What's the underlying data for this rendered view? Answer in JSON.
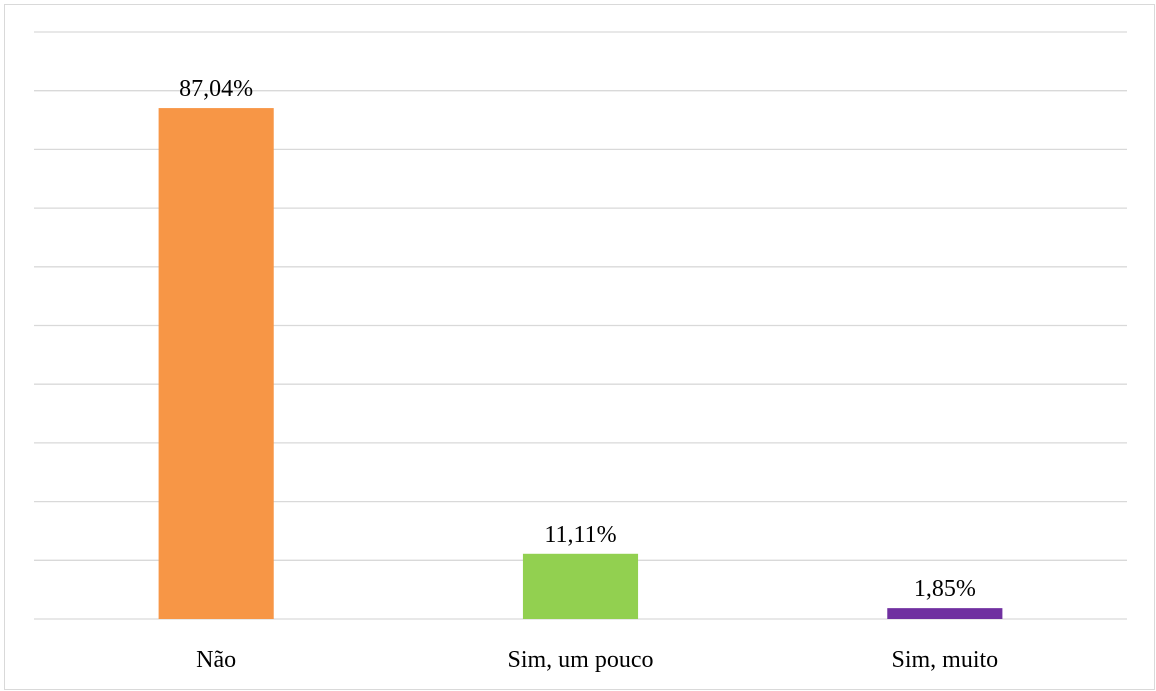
{
  "chart_data": {
    "type": "bar",
    "categories": [
      "Não",
      "Sim, um pouco",
      "Sim, muito"
    ],
    "values": [
      87.04,
      11.11,
      1.85
    ],
    "value_labels": [
      "87,04%",
      "11,11%",
      "1,85%"
    ],
    "colors": [
      "#f79646",
      "#92d050",
      "#7030a0"
    ],
    "ylim": [
      0,
      100
    ],
    "yticks": [
      0,
      10,
      20,
      30,
      40,
      50,
      60,
      70,
      80,
      90,
      100
    ],
    "show_ytick_labels": false,
    "grid": true
  }
}
